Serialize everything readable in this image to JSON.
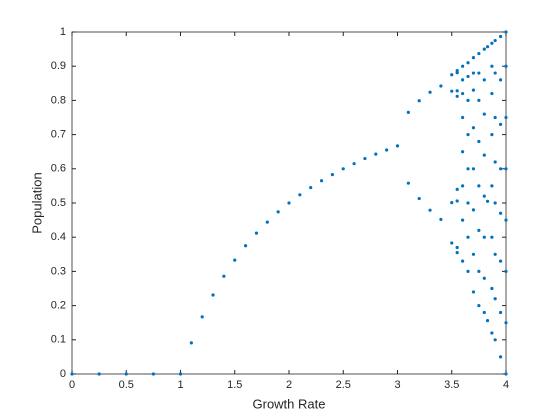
{
  "chart_data": {
    "type": "scatter",
    "xlabel": "Growth Rate",
    "ylabel": "Population",
    "xlim": [
      0,
      4
    ],
    "ylim": [
      0,
      1
    ],
    "xticks": [
      0,
      0.5,
      1,
      1.5,
      2,
      2.5,
      3,
      3.5,
      4
    ],
    "yticks": [
      0,
      0.1,
      0.2,
      0.3,
      0.4,
      0.5,
      0.6,
      0.7,
      0.8,
      0.9,
      1
    ],
    "x": [
      0,
      0.25,
      0.5,
      0.75,
      1,
      1.1,
      1.2,
      1.3,
      1.4,
      1.5,
      1.6,
      1.7,
      1.8,
      1.9,
      2,
      2.1,
      2.2,
      2.3,
      2.4,
      2.5,
      2.6,
      2.7,
      2.8,
      2.9,
      3,
      3.1,
      3.1,
      3.2,
      3.2,
      3.3,
      3.3,
      3.4,
      3.4,
      3.5,
      3.5,
      3.5,
      3.5,
      3.55,
      3.55,
      3.55,
      3.55,
      3.55,
      3.55,
      3.55,
      3.55,
      3.6,
      3.6,
      3.6,
      3.6,
      3.6,
      3.6,
      3.6,
      3.6,
      3.65,
      3.65,
      3.65,
      3.65,
      3.65,
      3.65,
      3.65,
      3.65,
      3.7,
      3.7,
      3.7,
      3.7,
      3.7,
      3.7,
      3.7,
      3.7,
      3.75,
      3.75,
      3.75,
      3.75,
      3.75,
      3.75,
      3.75,
      3.75,
      3.8,
      3.8,
      3.8,
      3.8,
      3.8,
      3.8,
      3.8,
      3.8,
      3.83,
      3.83,
      3.83,
      3.87,
      3.87,
      3.87,
      3.87,
      3.87,
      3.87,
      3.87,
      3.87,
      3.9,
      3.9,
      3.9,
      3.9,
      3.9,
      3.9,
      3.9,
      3.9,
      3.95,
      3.95,
      3.95,
      3.95,
      3.95,
      3.95,
      3.95,
      3.95,
      4,
      4,
      4,
      4,
      4,
      4,
      4,
      4
    ],
    "series": [
      {
        "color": "#0072bd",
        "values": [
          0,
          0,
          0,
          0,
          0,
          0.091,
          0.167,
          0.231,
          0.286,
          0.333,
          0.375,
          0.412,
          0.444,
          0.474,
          0.5,
          0.524,
          0.545,
          0.565,
          0.583,
          0.6,
          0.615,
          0.63,
          0.643,
          0.655,
          0.667,
          0.765,
          0.558,
          0.799,
          0.513,
          0.824,
          0.479,
          0.842,
          0.452,
          0.875,
          0.383,
          0.827,
          0.501,
          0.887,
          0.355,
          0.812,
          0.54,
          0.881,
          0.37,
          0.828,
          0.506,
          0.33,
          0.45,
          0.55,
          0.65,
          0.75,
          0.82,
          0.86,
          0.9,
          0.3,
          0.4,
          0.5,
          0.6,
          0.7,
          0.8,
          0.87,
          0.91,
          0.24,
          0.35,
          0.48,
          0.6,
          0.72,
          0.83,
          0.88,
          0.925,
          0.2,
          0.3,
          0.42,
          0.55,
          0.68,
          0.8,
          0.88,
          0.937,
          0.18,
          0.28,
          0.4,
          0.52,
          0.64,
          0.76,
          0.86,
          0.95,
          0.156,
          0.505,
          0.957,
          0.12,
          0.25,
          0.4,
          0.55,
          0.7,
          0.82,
          0.9,
          0.967,
          0.1,
          0.22,
          0.35,
          0.5,
          0.62,
          0.75,
          0.88,
          0.975,
          0.05,
          0.18,
          0.33,
          0.47,
          0.6,
          0.73,
          0.86,
          0.987,
          0,
          0.15,
          0.3,
          0.45,
          0.6,
          0.75,
          0.9,
          1
        ]
      }
    ]
  }
}
